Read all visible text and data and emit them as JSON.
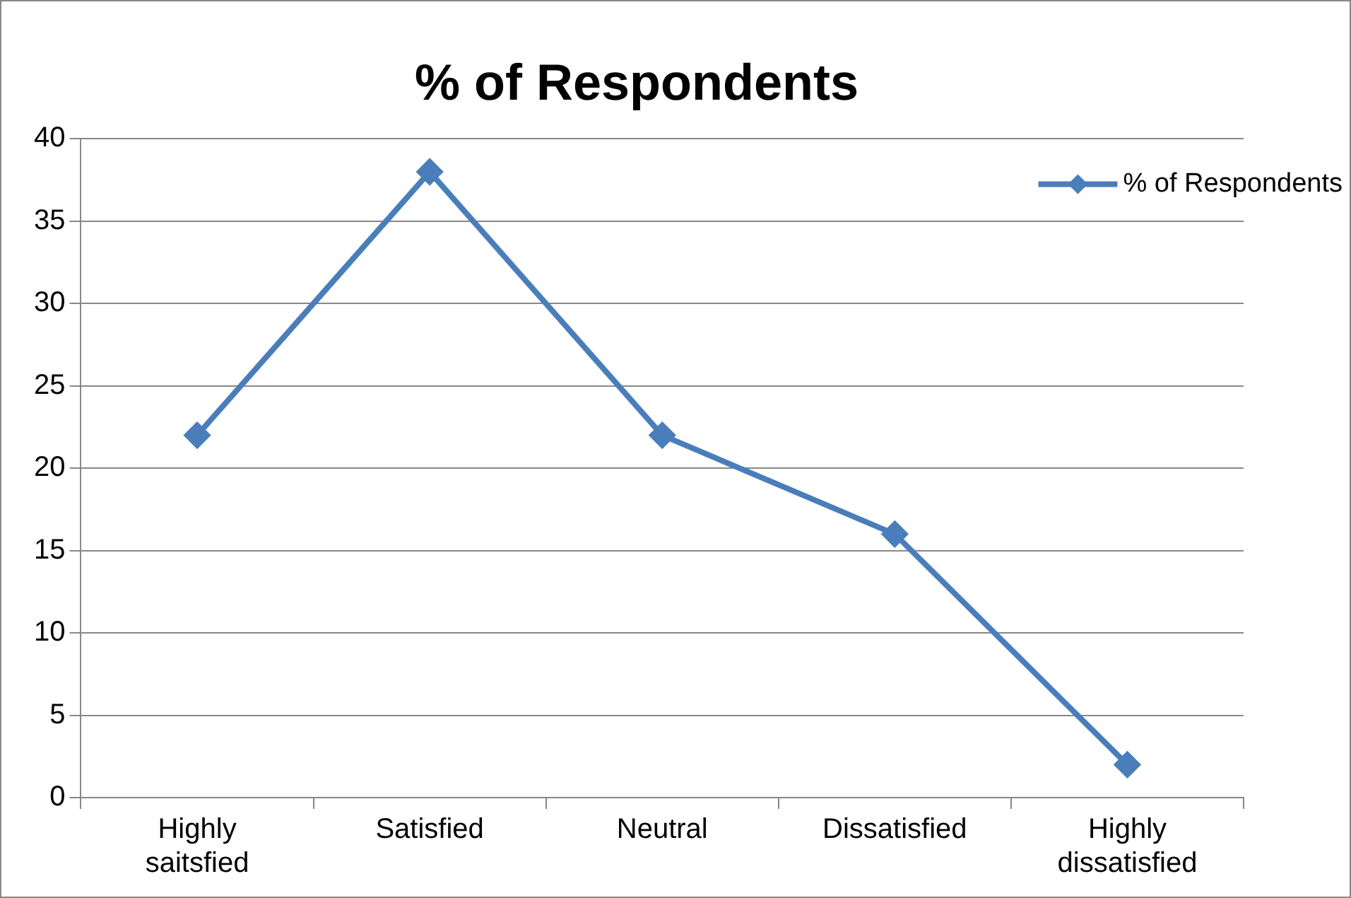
{
  "chart_data": {
    "type": "line",
    "title": "% of Respondents",
    "categories": [
      "Highly saitsfied",
      "Satisfied",
      "Neutral",
      "Dissatisfied",
      "Highly dissatisfied"
    ],
    "series": [
      {
        "name": "% of Respondents",
        "color": "#4a7ebb",
        "values": [
          22,
          38,
          22,
          16,
          2
        ]
      }
    ],
    "ylim": [
      0,
      40
    ],
    "yticks": [
      0,
      5,
      10,
      15,
      20,
      25,
      30,
      35,
      40
    ],
    "grid": "y",
    "legend": "top right",
    "marker": "diamond",
    "line_style": "solid"
  }
}
